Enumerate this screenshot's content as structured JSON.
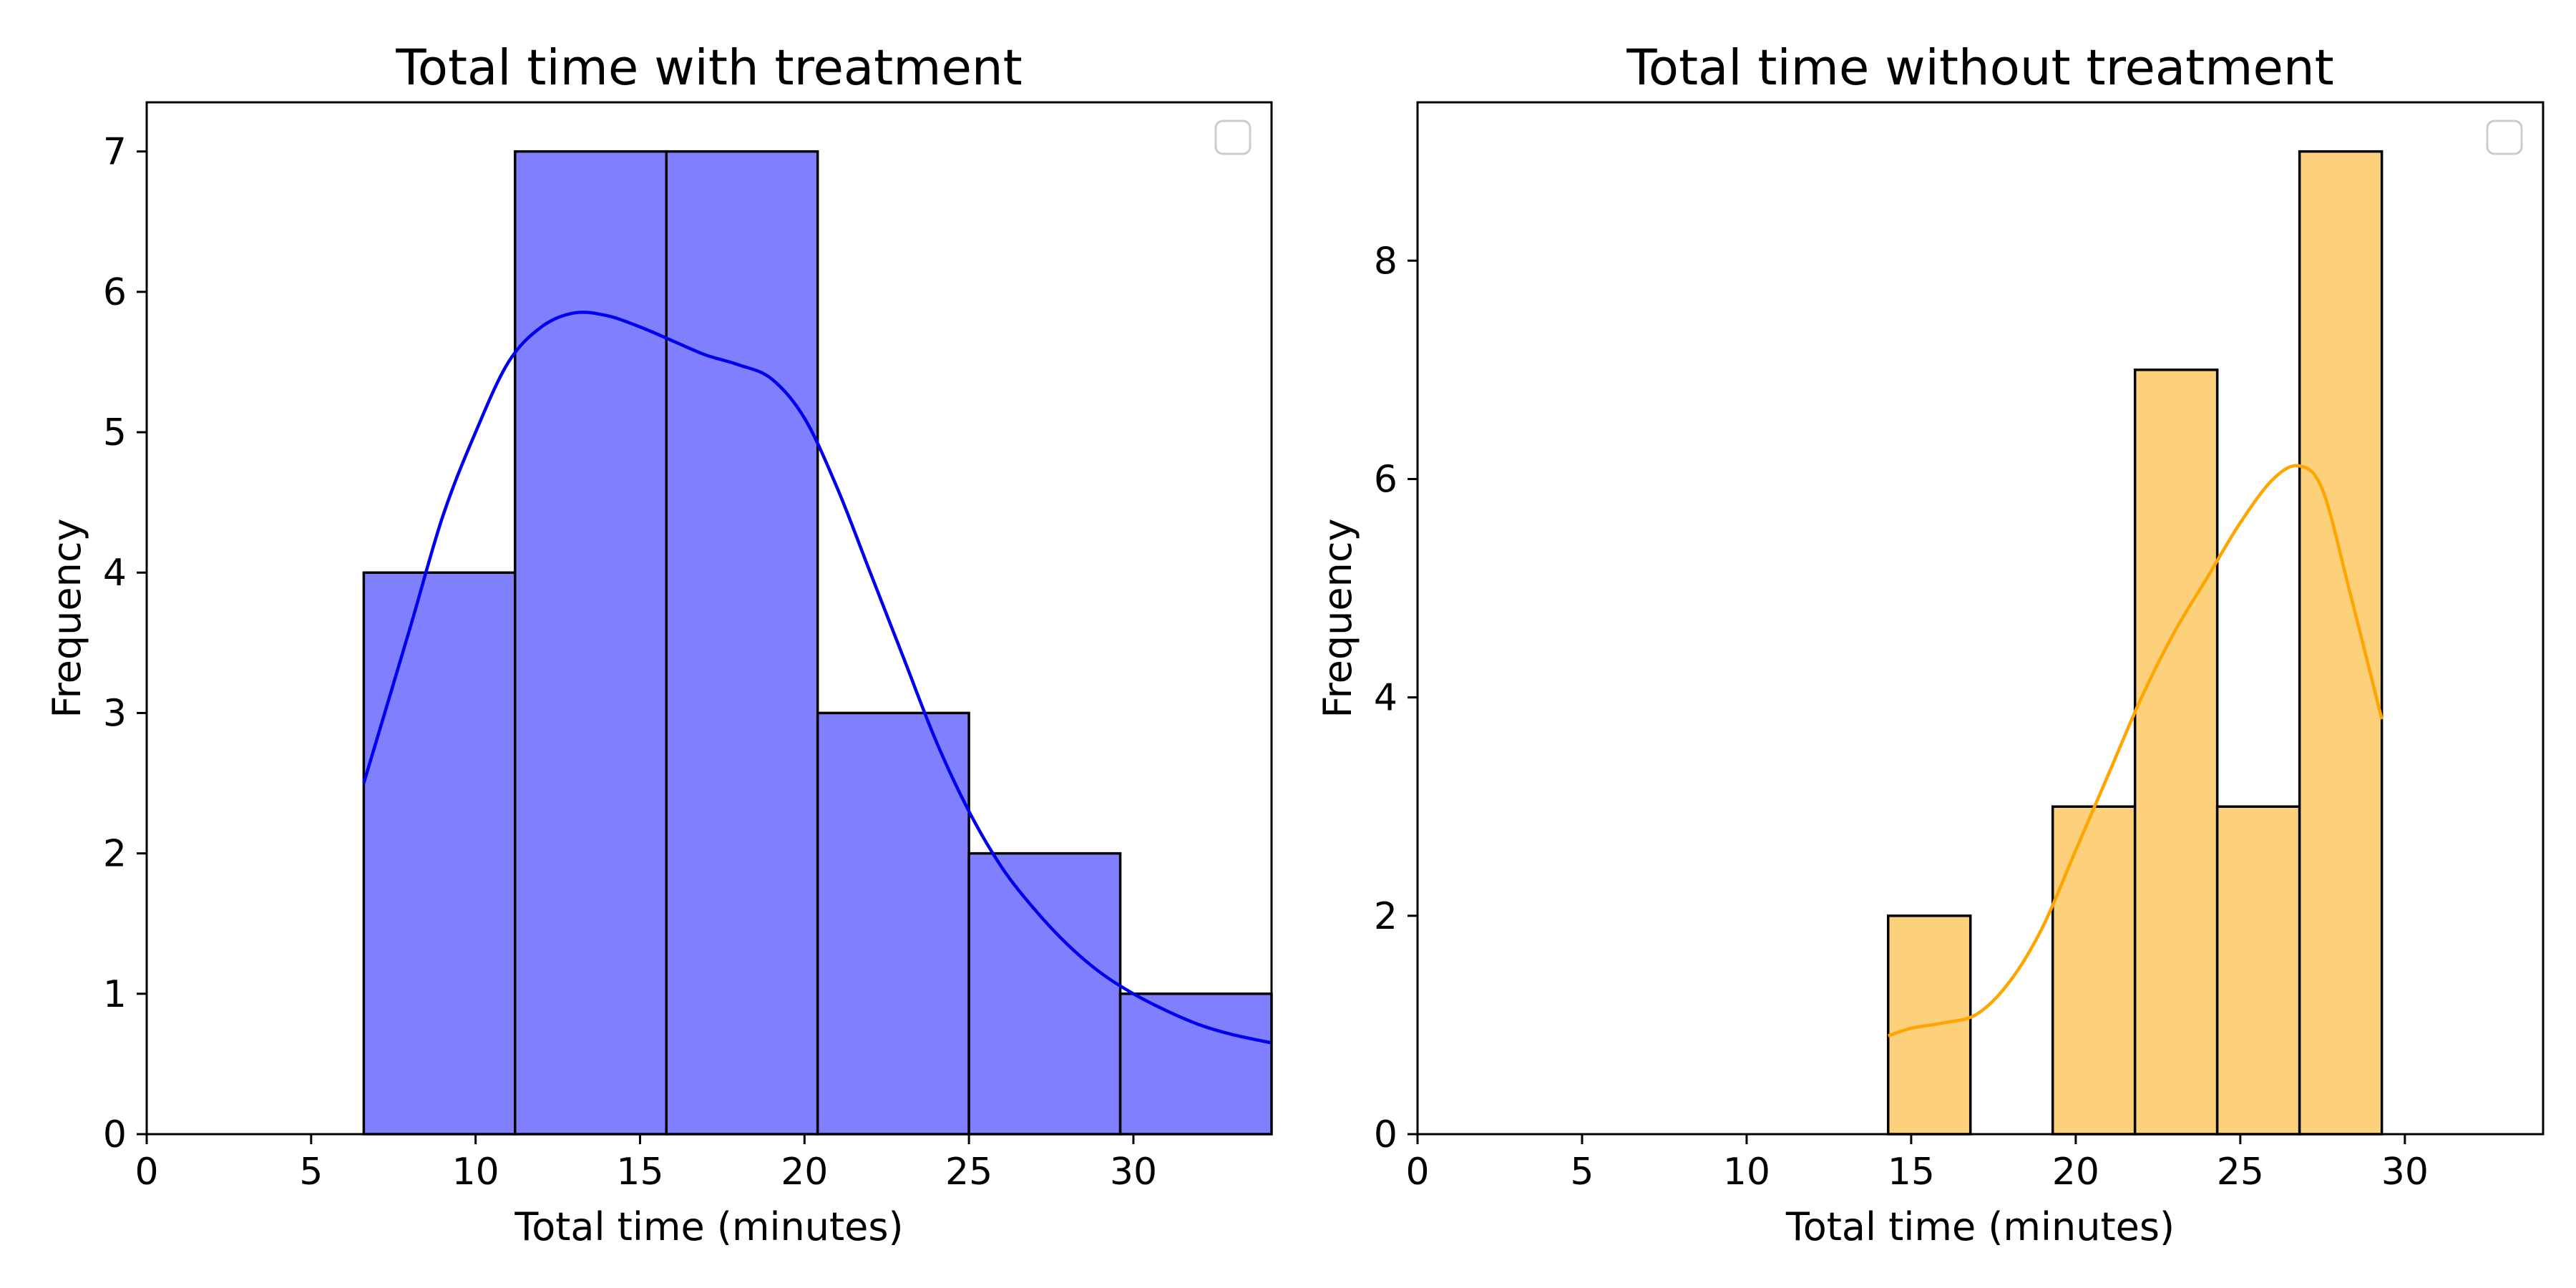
{
  "chart_data": [
    {
      "type": "histogram",
      "title": "Total time with treatment",
      "xlabel": "Total time (minutes)",
      "ylabel": "Frequency",
      "xlim": [
        0,
        34.2
      ],
      "ylim": [
        0,
        7.35
      ],
      "xticks": [
        0,
        5,
        10,
        15,
        20,
        25,
        30
      ],
      "yticks": [
        0,
        1,
        2,
        3,
        4,
        5,
        6,
        7
      ],
      "grid": false,
      "legend": {
        "position": "upper right",
        "entries": []
      },
      "bar_color": "#8080ff",
      "edge_color": "#000000",
      "kde_color": "#0000ee",
      "bins": [
        {
          "start": 6.6,
          "end": 11.2,
          "count": 4
        },
        {
          "start": 11.2,
          "end": 15.8,
          "count": 7
        },
        {
          "start": 15.8,
          "end": 20.4,
          "count": 7
        },
        {
          "start": 20.4,
          "end": 25.0,
          "count": 3
        },
        {
          "start": 25.0,
          "end": 29.6,
          "count": 2
        },
        {
          "start": 29.6,
          "end": 34.2,
          "count": 1
        }
      ],
      "kde": [
        [
          6.6,
          2.5
        ],
        [
          8,
          3.6
        ],
        [
          9,
          4.4
        ],
        [
          10,
          5.0
        ],
        [
          11,
          5.5
        ],
        [
          12,
          5.75
        ],
        [
          13,
          5.85
        ],
        [
          14,
          5.83
        ],
        [
          15,
          5.75
        ],
        [
          16,
          5.65
        ],
        [
          17,
          5.55
        ],
        [
          18,
          5.48
        ],
        [
          19,
          5.38
        ],
        [
          20,
          5.1
        ],
        [
          21,
          4.6
        ],
        [
          22,
          4.0
        ],
        [
          23,
          3.4
        ],
        [
          24,
          2.8
        ],
        [
          25,
          2.3
        ],
        [
          26,
          1.9
        ],
        [
          27,
          1.6
        ],
        [
          28,
          1.35
        ],
        [
          29,
          1.15
        ],
        [
          30,
          1.0
        ],
        [
          31,
          0.88
        ],
        [
          32,
          0.78
        ],
        [
          33,
          0.71
        ],
        [
          34.2,
          0.65
        ]
      ]
    },
    {
      "type": "histogram",
      "title": "Total time without treatment",
      "xlabel": "Total time (minutes)",
      "ylabel": "Frequency",
      "xlim": [
        0,
        34.2
      ],
      "ylim": [
        0,
        9.45
      ],
      "xticks": [
        0,
        5,
        10,
        15,
        20,
        25,
        30
      ],
      "yticks": [
        0,
        2,
        4,
        6,
        8
      ],
      "grid": false,
      "legend": {
        "position": "upper right",
        "entries": []
      },
      "bar_color": "#fdd07c",
      "edge_color": "#000000",
      "kde_color": "#ffa500",
      "bins": [
        {
          "start": 14.3,
          "end": 16.8,
          "count": 2
        },
        {
          "start": 16.8,
          "end": 19.3,
          "count": 0
        },
        {
          "start": 19.3,
          "end": 21.8,
          "count": 3
        },
        {
          "start": 21.8,
          "end": 24.3,
          "count": 7
        },
        {
          "start": 24.3,
          "end": 26.8,
          "count": 3
        },
        {
          "start": 26.8,
          "end": 29.3,
          "count": 9
        }
      ],
      "kde": [
        [
          14.3,
          0.9
        ],
        [
          15,
          0.97
        ],
        [
          16,
          1.02
        ],
        [
          17,
          1.1
        ],
        [
          18,
          1.4
        ],
        [
          19,
          1.9
        ],
        [
          20,
          2.6
        ],
        [
          21,
          3.3
        ],
        [
          22,
          4.0
        ],
        [
          23,
          4.6
        ],
        [
          24,
          5.1
        ],
        [
          25,
          5.6
        ],
        [
          26,
          6.0
        ],
        [
          26.8,
          6.12
        ],
        [
          27.5,
          5.9
        ],
        [
          28.3,
          5.0
        ],
        [
          29.3,
          3.8
        ]
      ]
    }
  ]
}
